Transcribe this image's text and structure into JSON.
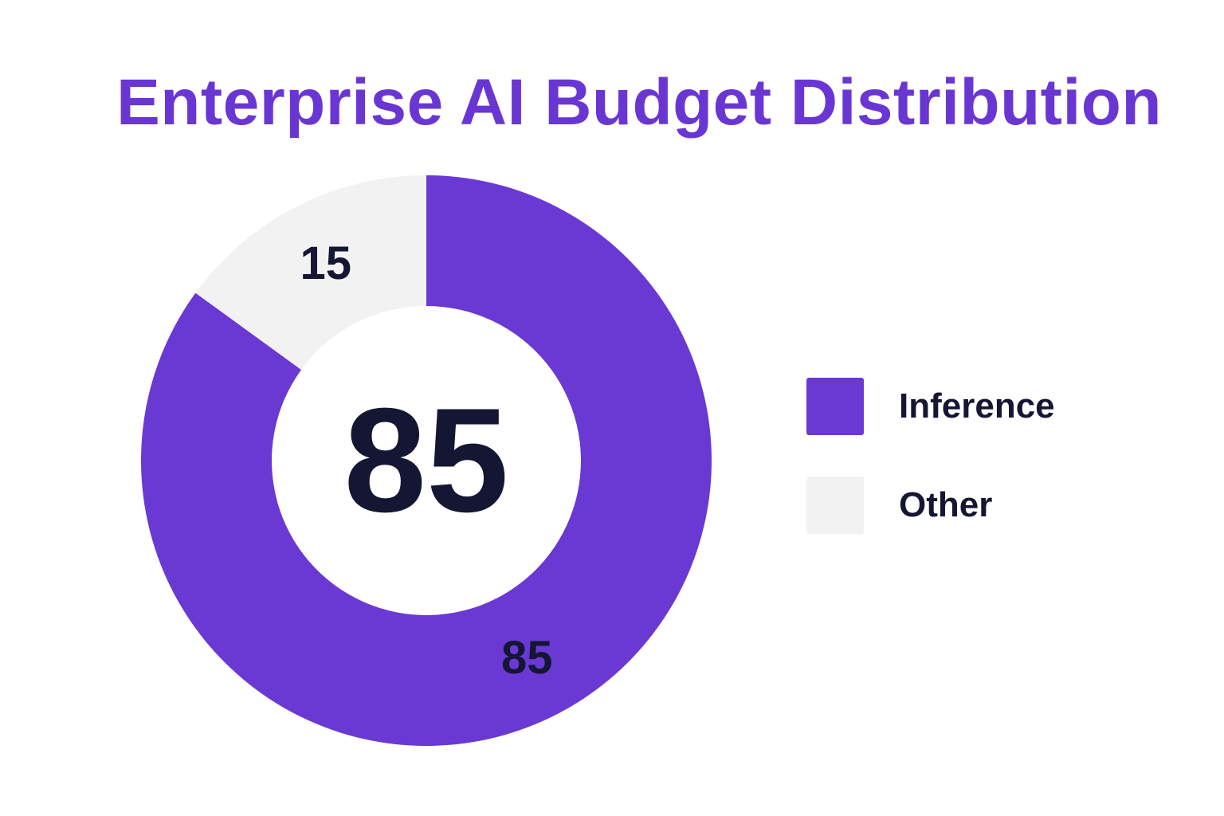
{
  "chart_data": {
    "type": "pie",
    "variant": "donut",
    "title": "Enterprise AI Budget Distribution",
    "center_label": "85",
    "slices": [
      {
        "name": "Inference",
        "value": 85,
        "label": "85",
        "color": "#6a38d3"
      },
      {
        "name": "Other",
        "value": 15,
        "label": "15",
        "color": "#f2f2f2"
      }
    ],
    "legend_position": "right"
  },
  "colors": {
    "title": "#6a36d3",
    "text": "#141633",
    "background": "#ffffff"
  }
}
